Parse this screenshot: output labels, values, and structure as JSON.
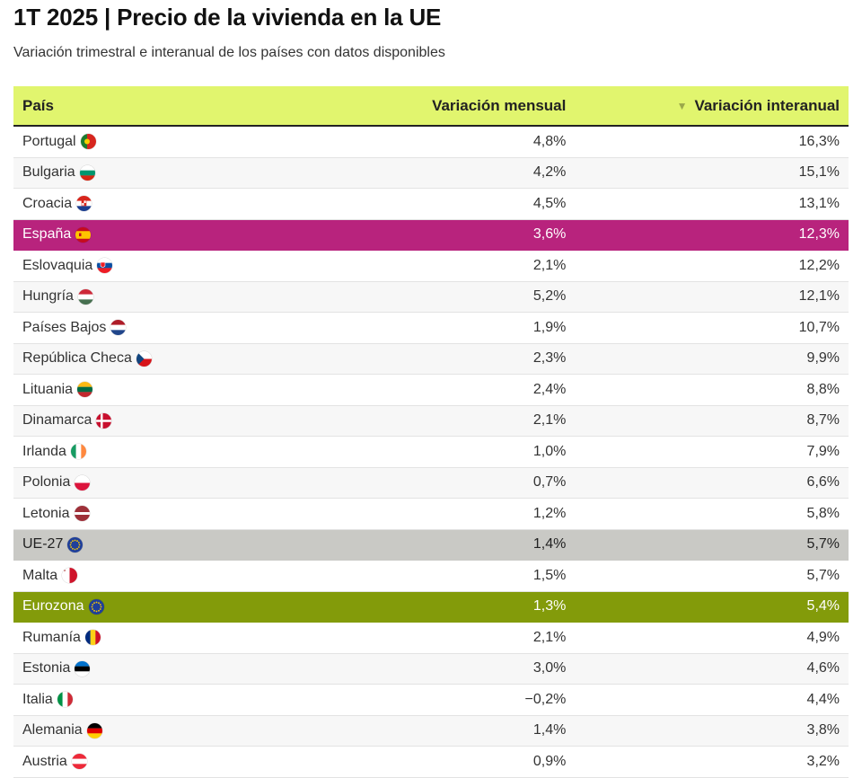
{
  "header": {
    "title": "1T 2025 | Precio de la vivienda en la UE",
    "subtitle": "Variación trimestral e interanual de los países con datos disponibles"
  },
  "table": {
    "columns": [
      "País",
      "Variación mensual",
      "Variación interanual"
    ],
    "sort_indicator": "▼",
    "rows": [
      {
        "country": "Portugal",
        "monthly": "4,8%",
        "yearly": "16,3%",
        "flag_icon": "portugal-flag-icon"
      },
      {
        "country": "Bulgaria",
        "monthly": "4,2%",
        "yearly": "15,1%",
        "flag_icon": "bulgaria-flag-icon"
      },
      {
        "country": "Croacia",
        "monthly": "4,5%",
        "yearly": "13,1%",
        "flag_icon": "croatia-flag-icon"
      },
      {
        "country": "España",
        "monthly": "3,6%",
        "yearly": "12,3%",
        "flag_icon": "spain-flag-icon",
        "highlight": "#b8237d"
      },
      {
        "country": "Eslovaquia",
        "monthly": "2,1%",
        "yearly": "12,2%",
        "flag_icon": "slovakia-flag-icon"
      },
      {
        "country": "Hungría",
        "monthly": "5,2%",
        "yearly": "12,1%",
        "flag_icon": "hungary-flag-icon"
      },
      {
        "country": "Países Bajos",
        "monthly": "1,9%",
        "yearly": "10,7%",
        "flag_icon": "netherlands-flag-icon"
      },
      {
        "country": "República Checa",
        "monthly": "2,3%",
        "yearly": "9,9%",
        "flag_icon": "czech-flag-icon"
      },
      {
        "country": "Lituania",
        "monthly": "2,4%",
        "yearly": "8,8%",
        "flag_icon": "lithuania-flag-icon"
      },
      {
        "country": "Dinamarca",
        "monthly": "2,1%",
        "yearly": "8,7%",
        "flag_icon": "denmark-flag-icon"
      },
      {
        "country": "Irlanda",
        "monthly": "1,0%",
        "yearly": "7,9%",
        "flag_icon": "ireland-flag-icon"
      },
      {
        "country": "Polonia",
        "monthly": "0,7%",
        "yearly": "6,6%",
        "flag_icon": "poland-flag-icon"
      },
      {
        "country": "Letonia",
        "monthly": "1,2%",
        "yearly": "5,8%",
        "flag_icon": "latvia-flag-icon"
      },
      {
        "country": "UE-27",
        "monthly": "1,4%",
        "yearly": "5,7%",
        "flag_icon": "eu-flag-icon",
        "highlight": "#c9c9c5"
      },
      {
        "country": "Malta",
        "monthly": "1,5%",
        "yearly": "5,7%",
        "flag_icon": "malta-flag-icon"
      },
      {
        "country": "Eurozona",
        "monthly": "1,3%",
        "yearly": "5,4%",
        "flag_icon": "eu-flag-icon",
        "highlight": "#839b0a"
      },
      {
        "country": "Rumanía",
        "monthly": "2,1%",
        "yearly": "4,9%",
        "flag_icon": "romania-flag-icon"
      },
      {
        "country": "Estonia",
        "monthly": "3,0%",
        "yearly": "4,6%",
        "flag_icon": "estonia-flag-icon"
      },
      {
        "country": "Italia",
        "monthly": "−0,2%",
        "yearly": "4,4%",
        "flag_icon": "italy-flag-icon"
      },
      {
        "country": "Alemania",
        "monthly": "1,4%",
        "yearly": "3,8%",
        "flag_icon": "germany-flag-icon"
      },
      {
        "country": "Austria",
        "monthly": "0,9%",
        "yearly": "3,2%",
        "flag_icon": "austria-flag-icon"
      }
    ]
  },
  "colors": {
    "header_bg": "#e1f56e",
    "spain_highlight": "#b8237d",
    "ue_highlight": "#c9c9c5",
    "eurozone_highlight": "#839b0a"
  }
}
